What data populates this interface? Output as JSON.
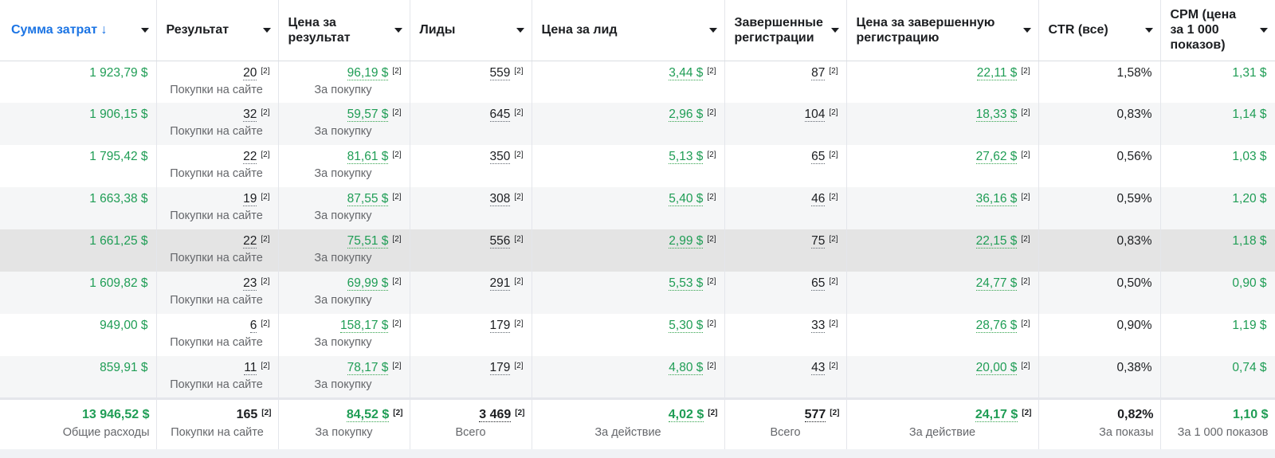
{
  "columns": [
    {
      "label": "Сумма затрат ↓",
      "sorted": true
    },
    {
      "label": "Результат"
    },
    {
      "label": "Цена за результат"
    },
    {
      "label": "Лиды"
    },
    {
      "label": "Цена за лид"
    },
    {
      "label": "Завершенные регистрации"
    },
    {
      "label": "Цена за завершенную регистрацию"
    },
    {
      "label": "CTR (все)"
    },
    {
      "label": "CPM (цена за 1 000 показов)"
    }
  ],
  "footnote_marker": "[2]",
  "result_sub": "Покупки на сайте",
  "cost_sub": "За покупку",
  "rows": [
    {
      "spend": "1 923,79 $",
      "result": "20",
      "cost_per_result": "96,19 $",
      "leads": "559",
      "cost_per_lead": "3,44 $",
      "regs": "87",
      "cost_per_reg": "22,11 $",
      "ctr": "1,58%",
      "cpm": "1,31 $"
    },
    {
      "spend": "1 906,15 $",
      "result": "32",
      "cost_per_result": "59,57 $",
      "leads": "645",
      "cost_per_lead": "2,96 $",
      "regs": "104",
      "cost_per_reg": "18,33 $",
      "ctr": "0,83%",
      "cpm": "1,14 $"
    },
    {
      "spend": "1 795,42 $",
      "result": "22",
      "cost_per_result": "81,61 $",
      "leads": "350",
      "cost_per_lead": "5,13 $",
      "regs": "65",
      "cost_per_reg": "27,62 $",
      "ctr": "0,56%",
      "cpm": "1,03 $"
    },
    {
      "spend": "1 663,38 $",
      "result": "19",
      "cost_per_result": "87,55 $",
      "leads": "308",
      "cost_per_lead": "5,40 $",
      "regs": "46",
      "cost_per_reg": "36,16 $",
      "ctr": "0,59%",
      "cpm": "1,20 $"
    },
    {
      "spend": "1 661,25 $",
      "result": "22",
      "cost_per_result": "75,51 $",
      "leads": "556",
      "cost_per_lead": "2,99 $",
      "regs": "75",
      "cost_per_reg": "22,15 $",
      "ctr": "0,83%",
      "cpm": "1,18 $"
    },
    {
      "spend": "1 609,82 $",
      "result": "23",
      "cost_per_result": "69,99 $",
      "leads": "291",
      "cost_per_lead": "5,53 $",
      "regs": "65",
      "cost_per_reg": "24,77 $",
      "ctr": "0,50%",
      "cpm": "0,90 $"
    },
    {
      "spend": "949,00 $",
      "result": "6",
      "cost_per_result": "158,17 $",
      "leads": "179",
      "cost_per_lead": "5,30 $",
      "regs": "33",
      "cost_per_reg": "28,76 $",
      "ctr": "0,90%",
      "cpm": "1,19 $"
    },
    {
      "spend": "859,91 $",
      "result": "11",
      "cost_per_result": "78,17 $",
      "leads": "179",
      "cost_per_lead": "4,80 $",
      "regs": "43",
      "cost_per_reg": "20,00 $",
      "ctr": "0,38%",
      "cpm": "0,74 $"
    }
  ],
  "totals": {
    "spend": "13 946,52 $",
    "spend_sub": "Общие расходы",
    "result": "165",
    "result_sub": "Покупки на сайте",
    "cost_per_result": "84,52 $",
    "cost_per_result_sub": "За покупку",
    "leads": "3 469",
    "leads_sub": "Всего",
    "cost_per_lead": "4,02 $",
    "cost_per_lead_sub": "За действие",
    "regs": "577",
    "regs_sub": "Всего",
    "cost_per_reg": "24,17 $",
    "cost_per_reg_sub": "За действие",
    "ctr": "0,82%",
    "ctr_sub": "За показы",
    "cpm": "1,10 $",
    "cpm_sub": "За 1 000 показов"
  },
  "colors": {
    "accent_blue": "#1b74e4",
    "money_green": "#1f9d55",
    "highlight_row": "#e4e4e4"
  }
}
